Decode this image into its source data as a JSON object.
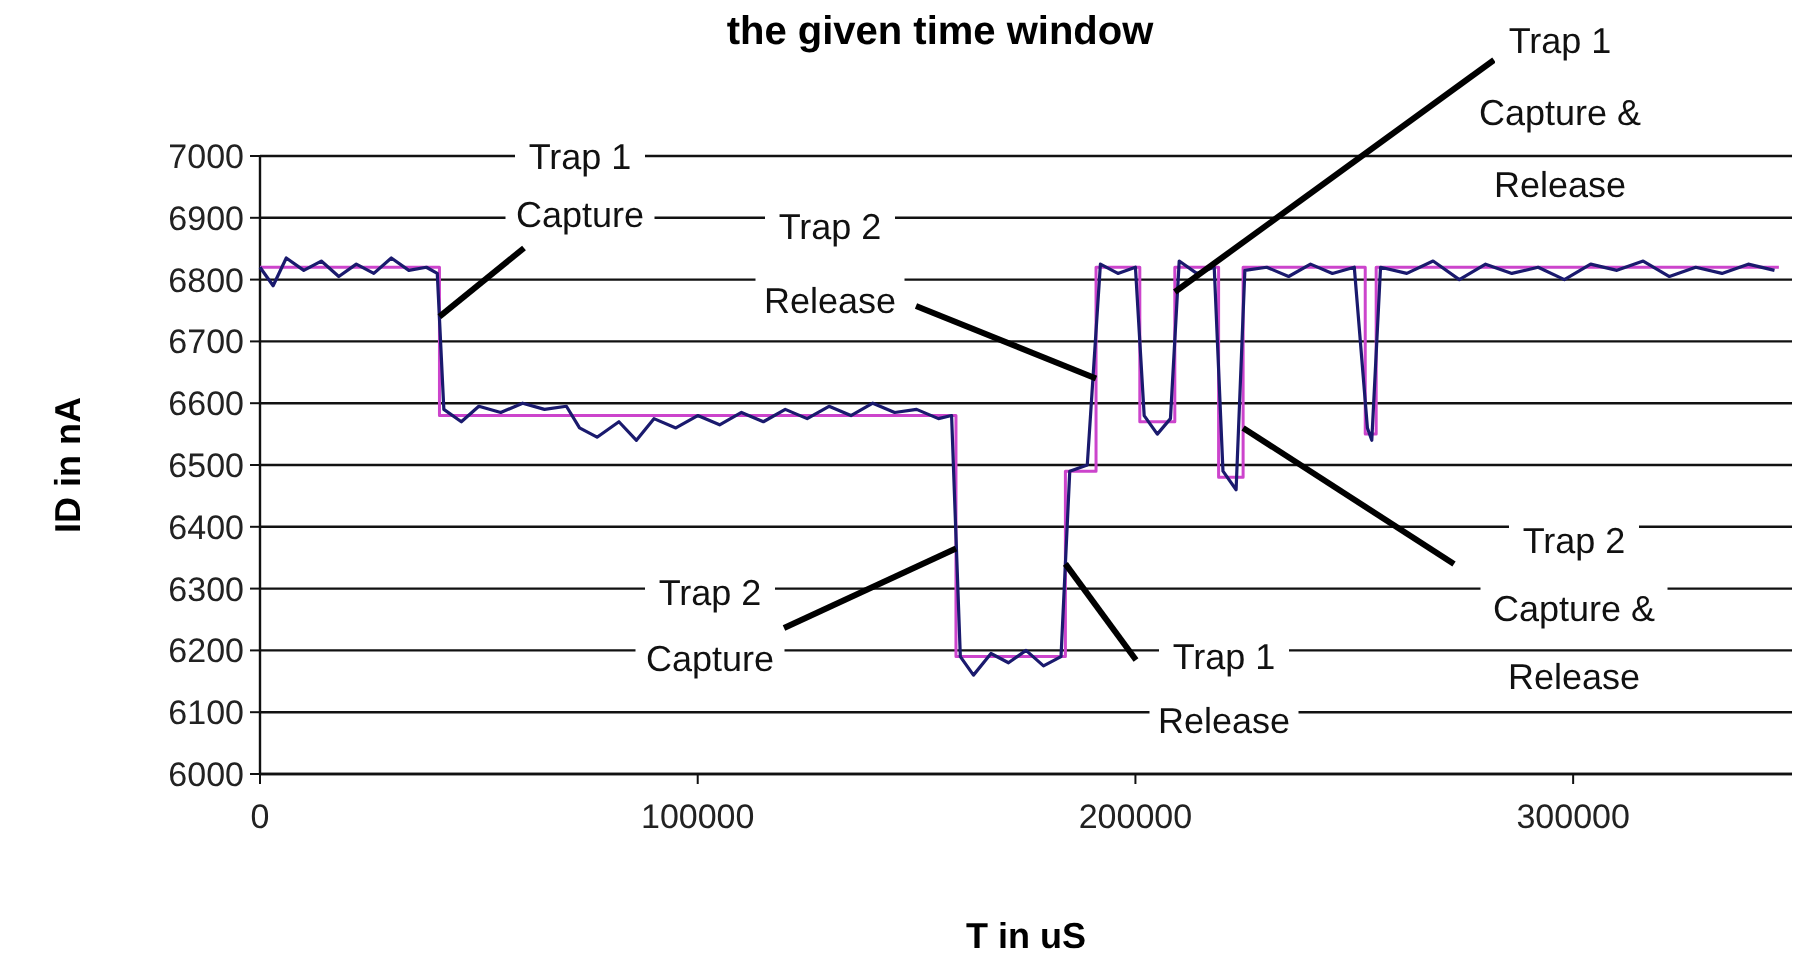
{
  "chart_data": {
    "type": "line",
    "title": "the given time window",
    "xlabel": "T in uS",
    "ylabel": "ID in nA",
    "xlim": [
      0,
      350000
    ],
    "xticks": [
      0,
      100000,
      200000,
      300000
    ],
    "ylim": [
      6000,
      7000
    ],
    "yticks": [
      6000,
      6100,
      6200,
      6300,
      6400,
      6500,
      6600,
      6700,
      6800,
      6900,
      7000
    ],
    "grid": "y",
    "series": [
      {
        "type": "step",
        "color": "#cc44cc",
        "x": [
          0,
          41000,
          159000,
          184000,
          191000,
          201000,
          209000,
          219000,
          224600,
          252500,
          255000,
          347000
        ],
        "values": [
          6820,
          6580,
          6190,
          6490,
          6820,
          6570,
          6820,
          6480,
          6820,
          6550,
          6820,
          6820
        ]
      },
      {
        "type": "line",
        "color": "#1a1a6e",
        "x": [
          0,
          3000,
          6000,
          10000,
          14000,
          18000,
          22000,
          26000,
          30000,
          34000,
          38000,
          40500,
          42000,
          46000,
          50000,
          55000,
          60000,
          65000,
          70000,
          73000,
          77000,
          82000,
          86000,
          90000,
          95000,
          100000,
          105000,
          110000,
          115000,
          120000,
          125000,
          130000,
          135000,
          140000,
          145000,
          150000,
          155000,
          158000,
          160000,
          163000,
          167000,
          171000,
          175000,
          179000,
          183000,
          185000,
          189000,
          192000,
          196000,
          200000,
          202000,
          205000,
          208000,
          210000,
          214000,
          218000,
          220000,
          223000,
          225000,
          230000,
          235000,
          240000,
          245000,
          250000,
          253000,
          254000,
          256000,
          262000,
          268000,
          274000,
          280000,
          286000,
          292000,
          298000,
          304000,
          310000,
          316000,
          322000,
          328000,
          334000,
          340000,
          346000
        ],
        "values": [
          6820,
          6790,
          6835,
          6815,
          6830,
          6805,
          6825,
          6810,
          6835,
          6815,
          6820,
          6810,
          6590,
          6570,
          6595,
          6585,
          6600,
          6590,
          6595,
          6560,
          6545,
          6570,
          6540,
          6575,
          6560,
          6580,
          6565,
          6585,
          6570,
          6590,
          6575,
          6595,
          6580,
          6600,
          6585,
          6590,
          6575,
          6580,
          6190,
          6160,
          6195,
          6180,
          6200,
          6175,
          6190,
          6490,
          6500,
          6825,
          6810,
          6820,
          6580,
          6550,
          6575,
          6830,
          6810,
          6820,
          6490,
          6460,
          6815,
          6820,
          6805,
          6825,
          6810,
          6820,
          6560,
          6540,
          6820,
          6810,
          6830,
          6800,
          6825,
          6810,
          6820,
          6800,
          6825,
          6815,
          6830,
          6805,
          6820,
          6810,
          6825,
          6815
        ]
      }
    ],
    "annotations": [
      {
        "text": "Trap 1\nCapture",
        "x": 41000,
        "y": 6740
      },
      {
        "text": "Trap 2\nRelease",
        "x": 191000,
        "y": 6640
      },
      {
        "text": "Trap 1\nCapture &\nRelease",
        "x": 209000,
        "y": 6780
      },
      {
        "text": "Trap 2\nCapture",
        "x": 159000,
        "y": 6365
      },
      {
        "text": "Trap 1\nRelease",
        "x": 184000,
        "y": 6340
      },
      {
        "text": "Trap 2\nCapture &\nRelease",
        "x": 224600,
        "y": 6560
      }
    ]
  }
}
